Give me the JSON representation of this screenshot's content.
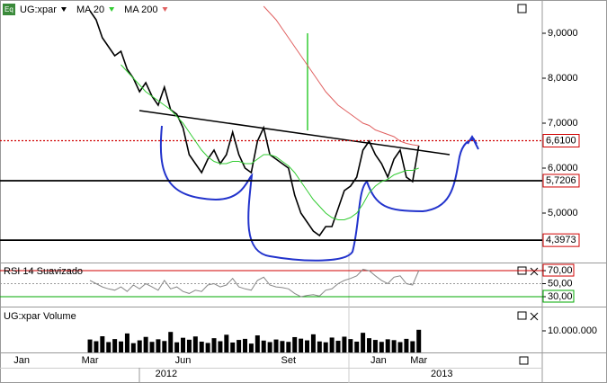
{
  "chart_data": [
    {
      "type": "line",
      "series": [
        {
          "name": "UG:xpar",
          "color": "#000000",
          "values": [
            9.5,
            9.3,
            8.9,
            8.7,
            8.5,
            8.6,
            8.2,
            8.0,
            7.7,
            7.9,
            7.6,
            7.4,
            7.8,
            7.3,
            7.2,
            6.9,
            6.3,
            6.1,
            5.9,
            6.2,
            6.4,
            6.1,
            6.3,
            6.8,
            6.3,
            6.0,
            5.9,
            6.6,
            6.9,
            6.3,
            6.2,
            6.1,
            6.0,
            5.4,
            5.0,
            4.8,
            4.6,
            4.5,
            4.7,
            4.7,
            5.1,
            5.5,
            5.6,
            5.8,
            6.4,
            6.6,
            6.3,
            6.1,
            5.8,
            6.2,
            6.4,
            5.8,
            5.7,
            6.5
          ]
        },
        {
          "name": "MA 20",
          "color": "#33cc33",
          "values": [
            null,
            null,
            null,
            null,
            null,
            8.3,
            8.15,
            8.0,
            7.85,
            7.7,
            7.6,
            7.5,
            7.4,
            7.3,
            7.15,
            7.0,
            6.8,
            6.6,
            6.4,
            6.25,
            6.15,
            6.1,
            6.1,
            6.15,
            6.15,
            6.1,
            6.1,
            6.2,
            6.3,
            6.3,
            6.25,
            6.15,
            6.05,
            5.9,
            5.7,
            5.5,
            5.3,
            5.15,
            5.0,
            4.9,
            4.85,
            4.85,
            4.9,
            5.0,
            5.2,
            5.45,
            5.6,
            5.7,
            5.75,
            5.85,
            5.9,
            5.95,
            5.95,
            6.0
          ]
        },
        {
          "name": "MA 200",
          "color": "#e06060",
          "values": [
            null,
            null,
            null,
            null,
            null,
            null,
            null,
            null,
            null,
            null,
            null,
            null,
            null,
            null,
            null,
            null,
            null,
            null,
            null,
            null,
            null,
            null,
            null,
            null,
            null,
            null,
            null,
            null,
            9.6,
            9.45,
            9.3,
            9.1,
            8.9,
            8.7,
            8.5,
            8.3,
            8.1,
            7.9,
            7.7,
            7.55,
            7.4,
            7.3,
            7.2,
            7.1,
            7.0,
            6.95,
            6.85,
            6.8,
            6.75,
            6.7,
            6.6,
            6.55,
            6.52,
            6.5
          ]
        }
      ],
      "ylim": [
        3.9,
        9.74
      ],
      "yticks": [
        {
          "value": 9,
          "label": "9,0000"
        },
        {
          "value": 8,
          "label": "8,0000"
        },
        {
          "value": 7,
          "label": "7,0000"
        },
        {
          "value": 6,
          "label": "6,0000"
        },
        {
          "value": 5,
          "label": "5,0000"
        }
      ],
      "levels": [
        {
          "value": 6.61,
          "label": "6,6100",
          "color": "#d00000",
          "style": "dotted"
        },
        {
          "value": 5.7206,
          "label": "5,7206",
          "color": "#000000",
          "style": "solid"
        },
        {
          "value": 4.3973,
          "label": "4,3973",
          "color": "#000000",
          "style": "solid"
        }
      ],
      "xlim": [
        -14.5,
        72.9
      ],
      "xticks": [
        {
          "value": -11,
          "label": "Jan"
        },
        {
          "value": 0,
          "label": "Mar"
        },
        {
          "value": 15,
          "label": "Jun"
        },
        {
          "value": 32,
          "label": "Set"
        },
        {
          "value": 46.5,
          "label": "Jan"
        },
        {
          "value": 53,
          "label": "Mar"
        }
      ],
      "xyears": [
        {
          "value": 12.3,
          "label": "2012"
        },
        {
          "value": 56.7,
          "label": "2013"
        }
      ]
    },
    {
      "type": "line",
      "title": "RSI 14 Suavizado",
      "series": [
        {
          "name": "RSI 14",
          "color": "#888888",
          "values": [
            55,
            50,
            45,
            42,
            40,
            45,
            38,
            48,
            42,
            50,
            45,
            40,
            55,
            42,
            45,
            38,
            35,
            40,
            38,
            48,
            50,
            45,
            48,
            58,
            45,
            42,
            40,
            55,
            60,
            48,
            45,
            44,
            42,
            35,
            30,
            32,
            33,
            31,
            40,
            42,
            50,
            55,
            58,
            62,
            72,
            70,
            62,
            55,
            50,
            60,
            62,
            50,
            48,
            70
          ]
        }
      ],
      "ylim": [
        16.2,
        79.7
      ],
      "yticks": [
        {
          "value": 70,
          "label": "70,00"
        },
        {
          "value": 50,
          "label": "50,00"
        },
        {
          "value": 30,
          "label": "30,00"
        }
      ]
    },
    {
      "type": "bar",
      "title": "UG:xpar Volume",
      "color": "#000000",
      "values": [
        6000000,
        5200000,
        7500000,
        4800000,
        6200000,
        5100000,
        8800000,
        4300000,
        5600000,
        7200000,
        4900000,
        6100000,
        5300000,
        9500000,
        4700000,
        6800000,
        5900000,
        7400000,
        5000000,
        4400000,
        6600000,
        5200000,
        8200000,
        4600000,
        5800000,
        6300000,
        4100000,
        7900000,
        5500000,
        4800000,
        6000000,
        5300000,
        4900000,
        7100000,
        6400000,
        5600000,
        8400000,
        5100000,
        4700000,
        6900000,
        5400000,
        7300000,
        6200000,
        5000000,
        9100000,
        6600000,
        5800000,
        4900000,
        6100000,
        5700000,
        4800000,
        6300000,
        5200000,
        10500000
      ],
      "ylim": [
        0,
        20000000
      ],
      "yticks": [
        {
          "value": 10000000,
          "label": "10.000.000"
        }
      ]
    }
  ]
}
